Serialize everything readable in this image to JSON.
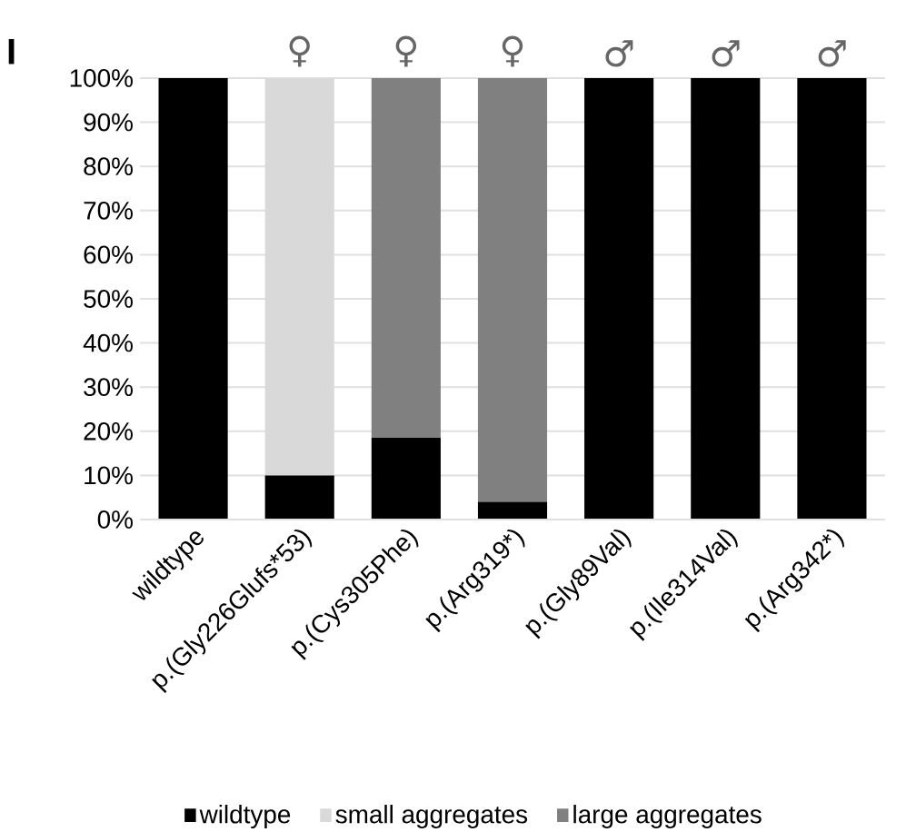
{
  "chart_data": {
    "type": "bar",
    "stacked": true,
    "categories": [
      "wildtype",
      "p.(Gly226Glufs*53)",
      "p.(Cys305Phe)",
      "p.(Arg319*)",
      "p.(Gly89Val)",
      "p.(Ile314Val)",
      "p.(Arg342*)"
    ],
    "series": [
      {
        "name": "wildtype",
        "color": "#000000",
        "values": [
          100,
          10,
          18.5,
          4,
          100,
          100,
          100
        ]
      },
      {
        "name": "small aggregates",
        "color": "#d9d9d9",
        "values": [
          0,
          90,
          0,
          0,
          0,
          0,
          0
        ]
      },
      {
        "name": "large aggregates",
        "color": "#808080",
        "values": [
          0,
          0,
          81.5,
          96,
          0,
          0,
          0
        ]
      }
    ],
    "ylim": [
      0,
      100
    ],
    "yticks": [
      {
        "value": 0,
        "label": "0%"
      },
      {
        "value": 10,
        "label": "10%"
      },
      {
        "value": 20,
        "label": "20%"
      },
      {
        "value": 30,
        "label": "30%"
      },
      {
        "value": 40,
        "label": "40%"
      },
      {
        "value": 50,
        "label": "50%"
      },
      {
        "value": 60,
        "label": "60%"
      },
      {
        "value": 70,
        "label": "70%"
      },
      {
        "value": 80,
        "label": "80%"
      },
      {
        "value": 90,
        "label": "90%"
      },
      {
        "value": 100,
        "label": "100%"
      }
    ],
    "grid": "y",
    "legend": "bottom",
    "annotations": [
      "I",
      "♀",
      "♀",
      "♀",
      "♂",
      "♂",
      "♂"
    ]
  }
}
